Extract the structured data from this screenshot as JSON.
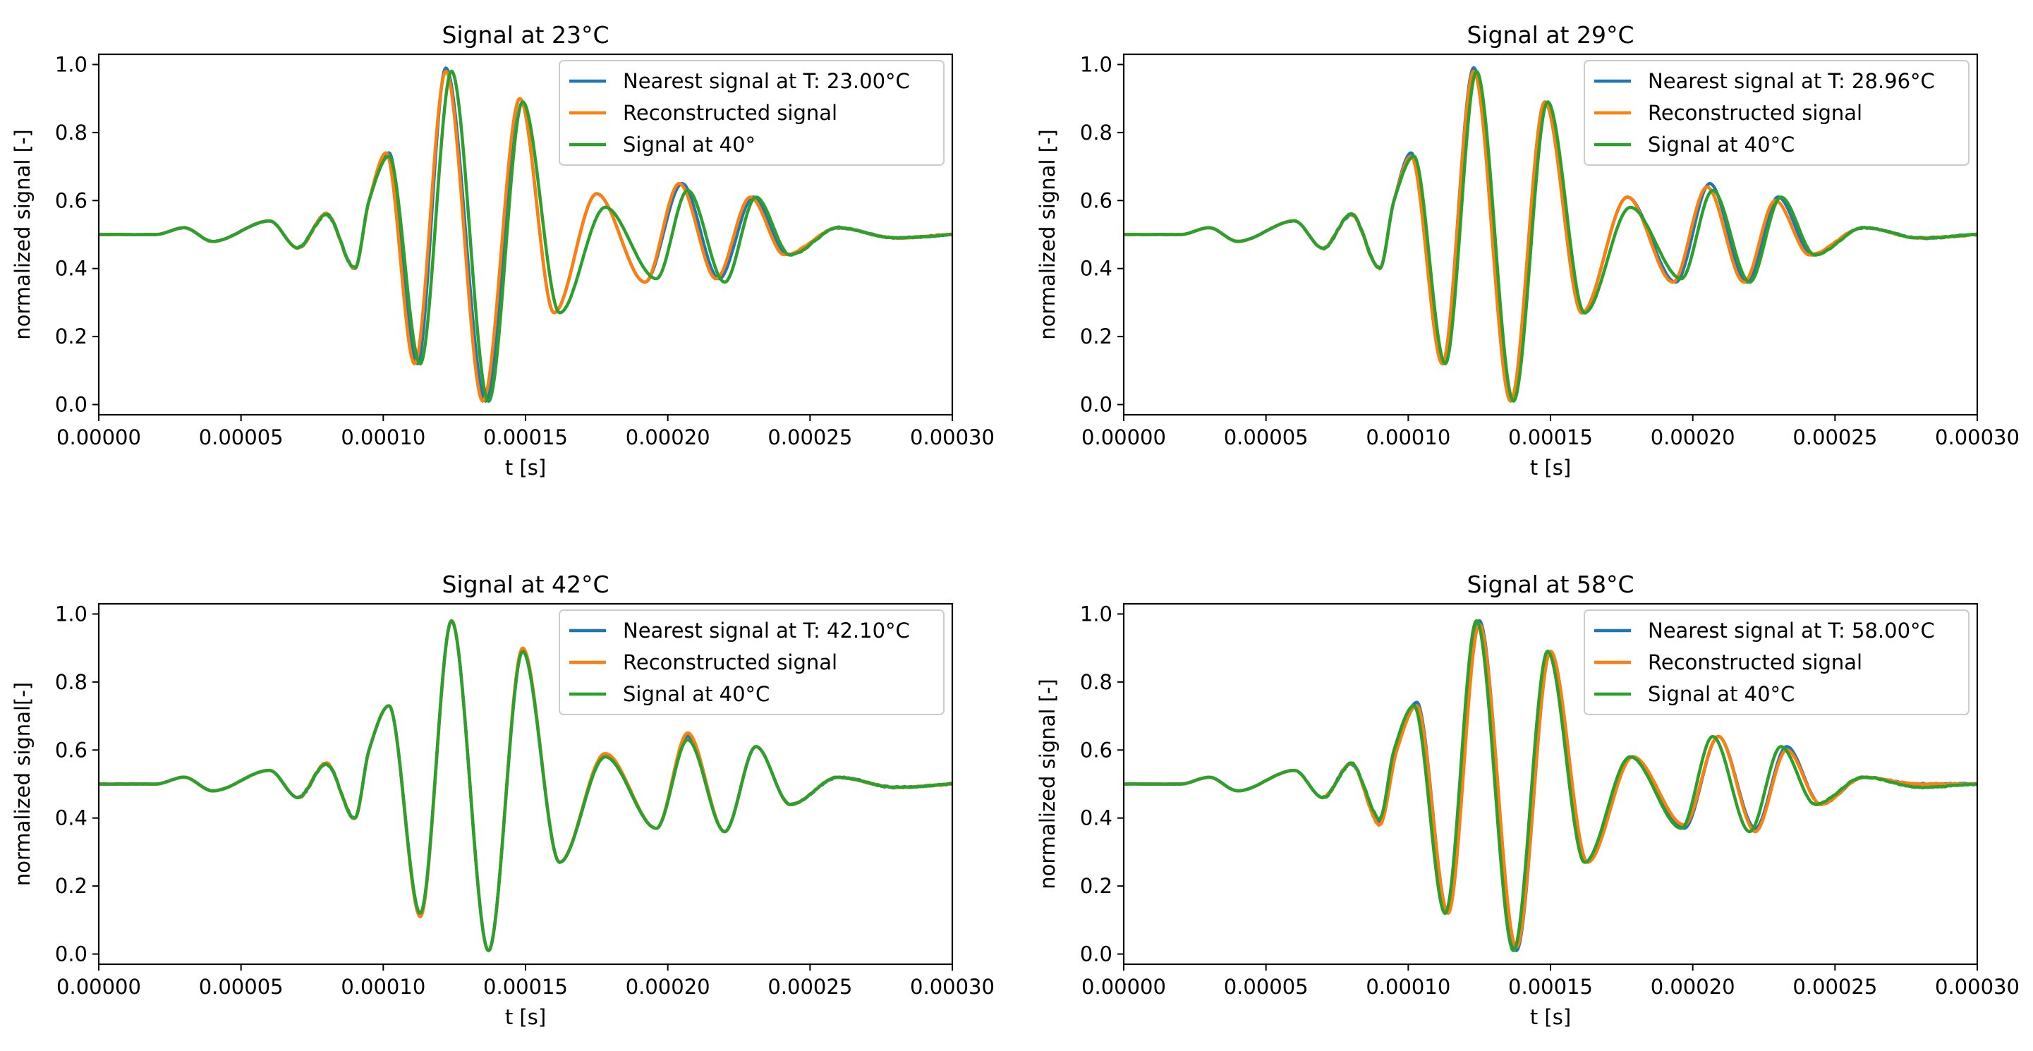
{
  "figure": {
    "layout": "2x2 grid",
    "background": "#ffffff"
  },
  "colors": {
    "blue": "#1f77b4",
    "orange": "#ff7f0e",
    "green": "#2ca02c"
  },
  "chart_data": [
    {
      "type": "line",
      "title": "Signal at 23°C",
      "xlabel": "t [s]",
      "ylabel": "normalized signal [-]",
      "xlim": [
        0,
        0.0003
      ],
      "ylim": [
        -0.03,
        1.03
      ],
      "xticks": [
        "0.00000",
        "0.00005",
        "0.00010",
        "0.00015",
        "0.00020",
        "0.00025",
        "0.00030"
      ],
      "yticks": [
        "0.0",
        "0.2",
        "0.4",
        "0.6",
        "0.8",
        "1.0"
      ],
      "legend_position": "top-right",
      "grid": false,
      "series": [
        {
          "name": "Nearest signal at T: 23.00°C",
          "color": "#1f77b4",
          "x": [
            0,
            2e-05,
            3e-05,
            4e-05,
            6e-05,
            7e-05,
            8e-05,
            9e-05,
            9.5e-05,
            0.000102,
            0.000112,
            0.000122,
            0.000136,
            0.000148,
            0.00016,
            0.000175,
            0.000192,
            0.000205,
            0.000218,
            0.00023,
            0.000242,
            0.00026,
            0.00028,
            0.0003
          ],
          "y": [
            0.5,
            0.5,
            0.52,
            0.48,
            0.54,
            0.46,
            0.56,
            0.4,
            0.6,
            0.74,
            0.12,
            0.99,
            0.01,
            0.9,
            0.27,
            0.62,
            0.36,
            0.65,
            0.37,
            0.61,
            0.44,
            0.52,
            0.49,
            0.5
          ]
        },
        {
          "name": "Reconstructed signal",
          "color": "#ff7f0e",
          "x": [
            0,
            2e-05,
            3e-05,
            4e-05,
            6e-05,
            7e-05,
            8e-05,
            9e-05,
            9.5e-05,
            0.000101,
            0.000111,
            0.000122,
            0.000135,
            0.000148,
            0.00016,
            0.000175,
            0.000192,
            0.000204,
            0.000217,
            0.000229,
            0.000241,
            0.00026,
            0.00028,
            0.0003
          ],
          "y": [
            0.5,
            0.5,
            0.52,
            0.48,
            0.54,
            0.46,
            0.56,
            0.4,
            0.6,
            0.74,
            0.12,
            0.98,
            0.01,
            0.9,
            0.27,
            0.62,
            0.36,
            0.65,
            0.37,
            0.61,
            0.44,
            0.52,
            0.49,
            0.5
          ]
        },
        {
          "name": "Signal at 40°",
          "color": "#2ca02c",
          "x": [
            0,
            2e-05,
            3e-05,
            4e-05,
            6e-05,
            7e-05,
            8e-05,
            9e-05,
            9.5e-05,
            0.000102,
            0.000113,
            0.000124,
            0.000137,
            0.000149,
            0.000162,
            0.000178,
            0.000196,
            0.000207,
            0.00022,
            0.000231,
            0.000243,
            0.00026,
            0.00028,
            0.0003
          ],
          "y": [
            0.5,
            0.5,
            0.52,
            0.48,
            0.54,
            0.46,
            0.56,
            0.4,
            0.6,
            0.73,
            0.12,
            0.98,
            0.01,
            0.89,
            0.27,
            0.58,
            0.37,
            0.63,
            0.36,
            0.61,
            0.44,
            0.52,
            0.49,
            0.5
          ]
        }
      ]
    },
    {
      "type": "line",
      "title": "Signal at 29°C",
      "xlabel": "t [s]",
      "ylabel": "normalized signal [-]",
      "xlim": [
        0,
        0.0003
      ],
      "ylim": [
        -0.03,
        1.03
      ],
      "xticks": [
        "0.00000",
        "0.00005",
        "0.00010",
        "0.00015",
        "0.00020",
        "0.00025",
        "0.00030"
      ],
      "yticks": [
        "0.0",
        "0.2",
        "0.4",
        "0.6",
        "0.8",
        "1.0"
      ],
      "legend_position": "top-right",
      "grid": false,
      "series": [
        {
          "name": "Nearest signal at T: 28.96°C",
          "color": "#1f77b4",
          "x": [
            0,
            2e-05,
            3e-05,
            4e-05,
            6e-05,
            7e-05,
            8e-05,
            9e-05,
            9.5e-05,
            0.000101,
            0.000112,
            0.000123,
            0.000136,
            0.000148,
            0.000161,
            0.000177,
            0.000194,
            0.000206,
            0.000219,
            0.00023,
            0.000242,
            0.00026,
            0.00028,
            0.0003
          ],
          "y": [
            0.5,
            0.5,
            0.52,
            0.48,
            0.54,
            0.46,
            0.56,
            0.4,
            0.6,
            0.74,
            0.12,
            0.99,
            0.01,
            0.89,
            0.27,
            0.61,
            0.36,
            0.65,
            0.36,
            0.61,
            0.44,
            0.52,
            0.49,
            0.5
          ]
        },
        {
          "name": "Reconstructed signal",
          "color": "#ff7f0e",
          "x": [
            0,
            2e-05,
            3e-05,
            4e-05,
            6e-05,
            7e-05,
            8e-05,
            9e-05,
            9.5e-05,
            0.000101,
            0.000112,
            0.000123,
            0.000136,
            0.000148,
            0.000161,
            0.000177,
            0.000193,
            0.000205,
            0.000218,
            0.000229,
            0.000241,
            0.00026,
            0.00028,
            0.0003
          ],
          "y": [
            0.5,
            0.5,
            0.52,
            0.48,
            0.54,
            0.46,
            0.56,
            0.4,
            0.6,
            0.73,
            0.12,
            0.98,
            0.01,
            0.89,
            0.27,
            0.61,
            0.36,
            0.64,
            0.36,
            0.6,
            0.44,
            0.52,
            0.49,
            0.5
          ]
        },
        {
          "name": "Signal at 40°C",
          "color": "#2ca02c",
          "x": [
            0,
            2e-05,
            3e-05,
            4e-05,
            6e-05,
            7e-05,
            8e-05,
            9e-05,
            9.5e-05,
            0.000102,
            0.000113,
            0.000124,
            0.000137,
            0.000149,
            0.000162,
            0.000178,
            0.000196,
            0.000207,
            0.00022,
            0.000231,
            0.000243,
            0.00026,
            0.00028,
            0.0003
          ],
          "y": [
            0.5,
            0.5,
            0.52,
            0.48,
            0.54,
            0.46,
            0.56,
            0.4,
            0.6,
            0.73,
            0.12,
            0.98,
            0.01,
            0.89,
            0.27,
            0.58,
            0.37,
            0.63,
            0.36,
            0.61,
            0.44,
            0.52,
            0.49,
            0.5
          ]
        }
      ]
    },
    {
      "type": "line",
      "title": "Signal at 42°C",
      "xlabel": "t [s]",
      "ylabel": "normalized signal[-]",
      "xlim": [
        0,
        0.0003
      ],
      "ylim": [
        -0.03,
        1.03
      ],
      "xticks": [
        "0.00000",
        "0.00005",
        "0.00010",
        "0.00015",
        "0.00020",
        "0.00025",
        "0.00030"
      ],
      "yticks": [
        "0.0",
        "0.2",
        "0.4",
        "0.6",
        "0.8",
        "1.0"
      ],
      "legend_position": "top-right",
      "grid": false,
      "series": [
        {
          "name": "Nearest signal at T: 42.10°C",
          "color": "#1f77b4",
          "x": [
            0,
            2e-05,
            3e-05,
            4e-05,
            6e-05,
            7e-05,
            8e-05,
            9e-05,
            9.5e-05,
            0.000102,
            0.000113,
            0.000124,
            0.000137,
            0.000149,
            0.000162,
            0.000178,
            0.000196,
            0.000207,
            0.00022,
            0.000231,
            0.000243,
            0.00026,
            0.00028,
            0.0003
          ],
          "y": [
            0.5,
            0.5,
            0.52,
            0.48,
            0.54,
            0.46,
            0.56,
            0.4,
            0.6,
            0.73,
            0.11,
            0.98,
            0.01,
            0.89,
            0.27,
            0.58,
            0.37,
            0.64,
            0.36,
            0.61,
            0.44,
            0.52,
            0.49,
            0.5
          ]
        },
        {
          "name": "Reconstructed signal",
          "color": "#ff7f0e",
          "x": [
            0,
            2e-05,
            3e-05,
            4e-05,
            6e-05,
            7e-05,
            8e-05,
            9e-05,
            9.5e-05,
            0.000102,
            0.000113,
            0.000124,
            0.000137,
            0.000149,
            0.000162,
            0.000178,
            0.000196,
            0.000207,
            0.00022,
            0.000231,
            0.000243,
            0.00026,
            0.00028,
            0.0003
          ],
          "y": [
            0.5,
            0.5,
            0.52,
            0.48,
            0.54,
            0.46,
            0.56,
            0.4,
            0.6,
            0.73,
            0.11,
            0.98,
            0.01,
            0.9,
            0.27,
            0.59,
            0.37,
            0.65,
            0.36,
            0.61,
            0.44,
            0.52,
            0.49,
            0.5
          ]
        },
        {
          "name": "Signal at 40°C",
          "color": "#2ca02c",
          "x": [
            0,
            2e-05,
            3e-05,
            4e-05,
            6e-05,
            7e-05,
            8e-05,
            9e-05,
            9.5e-05,
            0.000102,
            0.000113,
            0.000124,
            0.000137,
            0.000149,
            0.000162,
            0.000178,
            0.000196,
            0.000207,
            0.00022,
            0.000231,
            0.000243,
            0.00026,
            0.00028,
            0.0003
          ],
          "y": [
            0.5,
            0.5,
            0.52,
            0.48,
            0.54,
            0.46,
            0.56,
            0.4,
            0.6,
            0.73,
            0.12,
            0.98,
            0.01,
            0.89,
            0.27,
            0.58,
            0.37,
            0.63,
            0.36,
            0.61,
            0.44,
            0.52,
            0.49,
            0.5
          ]
        }
      ]
    },
    {
      "type": "line",
      "title": "Signal at 58°C",
      "xlabel": "t [s]",
      "ylabel": "normalized signal [-]",
      "xlim": [
        0,
        0.0003
      ],
      "ylim": [
        -0.03,
        1.03
      ],
      "xticks": [
        "0.00000",
        "0.00005",
        "0.00010",
        "0.00015",
        "0.00020",
        "0.00025",
        "0.00030"
      ],
      "yticks": [
        "0.0",
        "0.2",
        "0.4",
        "0.6",
        "0.8",
        "1.0"
      ],
      "legend_position": "top-right",
      "grid": false,
      "series": [
        {
          "name": "Nearest signal at T: 58.00°C",
          "color": "#1f77b4",
          "x": [
            0,
            2e-05,
            3e-05,
            4e-05,
            6e-05,
            7e-05,
            8e-05,
            9e-05,
            9.6e-05,
            0.000103,
            0.000114,
            0.000125,
            0.000138,
            0.00015,
            0.000163,
            0.000179,
            0.000197,
            0.000209,
            0.000222,
            0.000233,
            0.000245,
            0.00026,
            0.00028,
            0.0003
          ],
          "y": [
            0.5,
            0.5,
            0.52,
            0.48,
            0.54,
            0.46,
            0.56,
            0.39,
            0.6,
            0.74,
            0.12,
            0.98,
            0.01,
            0.89,
            0.27,
            0.58,
            0.37,
            0.64,
            0.37,
            0.61,
            0.44,
            0.52,
            0.5,
            0.5
          ]
        },
        {
          "name": "Reconstructed signal",
          "color": "#ff7f0e",
          "x": [
            0,
            2e-05,
            3e-05,
            4e-05,
            6e-05,
            7e-05,
            8e-05,
            9e-05,
            9.6e-05,
            0.000103,
            0.000114,
            0.000125,
            0.000138,
            0.00015,
            0.000163,
            0.000179,
            0.000197,
            0.000209,
            0.000222,
            0.000233,
            0.000245,
            0.00026,
            0.00028,
            0.0003
          ],
          "y": [
            0.5,
            0.5,
            0.52,
            0.48,
            0.54,
            0.46,
            0.56,
            0.38,
            0.6,
            0.73,
            0.12,
            0.97,
            0.02,
            0.89,
            0.27,
            0.58,
            0.38,
            0.64,
            0.36,
            0.6,
            0.44,
            0.52,
            0.5,
            0.5
          ]
        },
        {
          "name": "Signal at 40°C",
          "color": "#2ca02c",
          "x": [
            0,
            2e-05,
            3e-05,
            4e-05,
            6e-05,
            7e-05,
            8e-05,
            9e-05,
            9.5e-05,
            0.000102,
            0.000113,
            0.000124,
            0.000137,
            0.000149,
            0.000162,
            0.000178,
            0.000196,
            0.000207,
            0.00022,
            0.000231,
            0.000243,
            0.00026,
            0.00028,
            0.0003
          ],
          "y": [
            0.5,
            0.5,
            0.52,
            0.48,
            0.54,
            0.46,
            0.56,
            0.4,
            0.6,
            0.73,
            0.12,
            0.98,
            0.01,
            0.89,
            0.27,
            0.58,
            0.37,
            0.64,
            0.36,
            0.61,
            0.44,
            0.52,
            0.49,
            0.5
          ]
        }
      ]
    }
  ]
}
